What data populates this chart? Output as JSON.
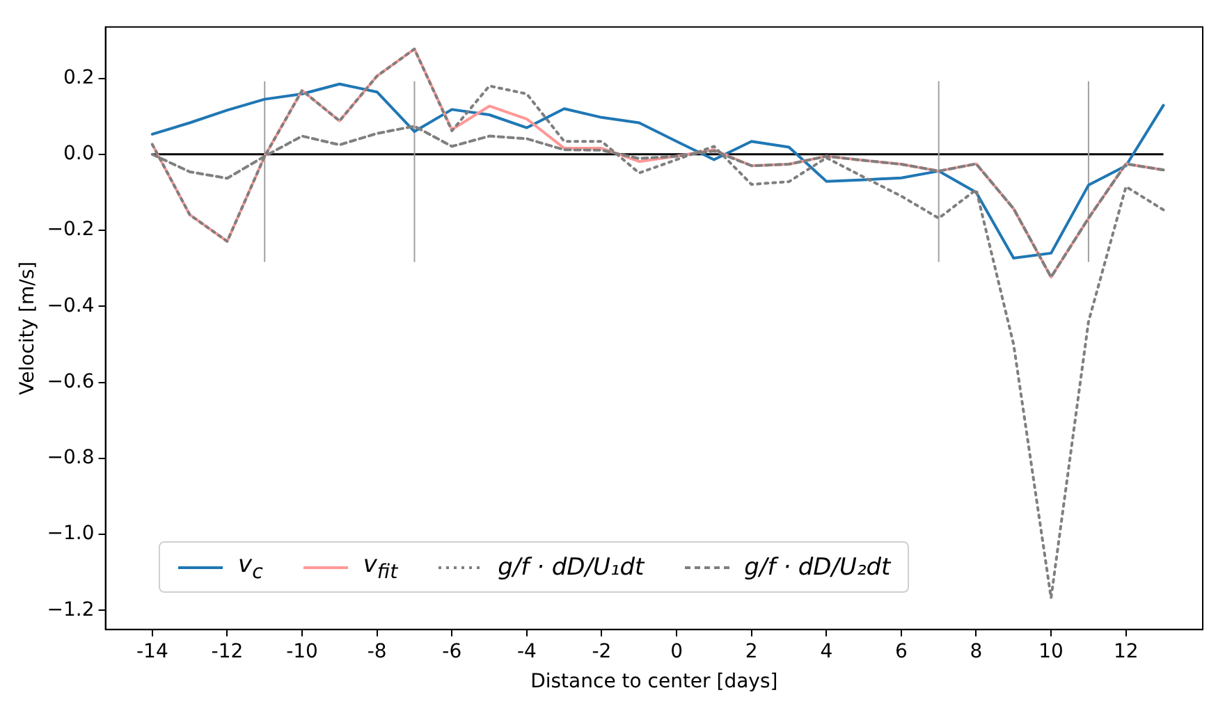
{
  "chart_data": {
    "type": "line",
    "xlabel": "Distance to center [days]",
    "ylabel": "Velocity [m/s]",
    "x": [
      -14,
      -13,
      -12,
      -11,
      -10,
      -9,
      -8,
      -7,
      -6,
      -5,
      -4,
      -3,
      -2,
      -1,
      0,
      1,
      2,
      3,
      4,
      5,
      6,
      7,
      8,
      9,
      10,
      11,
      12,
      13
    ],
    "series": [
      {
        "name": "v$_{c}$",
        "color": "#1f77b4",
        "line_style": "solid",
        "values": [
          0.053,
          0.083,
          0.116,
          0.145,
          0.159,
          0.185,
          0.164,
          0.06,
          0.118,
          0.104,
          0.07,
          0.12,
          0.097,
          0.083,
          0.034,
          -0.014,
          0.034,
          0.019,
          -0.071,
          -0.067,
          -0.062,
          -0.044,
          -0.1,
          -0.273,
          -0.26,
          -0.081,
          -0.03,
          0.129
        ]
      },
      {
        "name": "v$_{fit}$",
        "color": "#ff9896",
        "line_style": "solid",
        "values": [
          0.026,
          -0.159,
          -0.229,
          -0.005,
          0.168,
          0.088,
          0.206,
          0.277,
          0.065,
          0.127,
          0.093,
          0.016,
          0.016,
          -0.019,
          -0.005,
          0.012,
          -0.03,
          -0.026,
          -0.005,
          -0.016,
          -0.026,
          -0.044,
          -0.025,
          -0.143,
          -0.323,
          -0.168,
          -0.025,
          -0.041
        ]
      },
      {
        "name": "g/f · dD/U₁dt",
        "color": "#7f7f7f",
        "line_style": "dotted",
        "values": [
          0.026,
          -0.159,
          -0.229,
          -0.005,
          0.168,
          0.088,
          0.206,
          0.277,
          0.062,
          0.18,
          0.159,
          0.034,
          0.034,
          -0.049,
          -0.014,
          0.021,
          -0.079,
          -0.072,
          -0.009,
          -0.06,
          -0.11,
          -0.168,
          -0.093,
          -0.5,
          -1.167,
          -0.44,
          -0.085,
          -0.146
        ]
      },
      {
        "name": "g/f · dD/U₂dt",
        "color": "#7f7f7f",
        "line_style": "dashed",
        "values": [
          0.0,
          -0.046,
          -0.063,
          -0.005,
          0.048,
          0.025,
          0.055,
          0.074,
          0.021,
          0.048,
          0.041,
          0.012,
          0.011,
          -0.011,
          -0.005,
          0.009,
          -0.03,
          -0.026,
          -0.005,
          -0.016,
          -0.026,
          -0.044,
          -0.025,
          -0.143,
          -0.323,
          -0.168,
          -0.025,
          -0.041
        ]
      }
    ],
    "xlim": [
      -15.25,
      14.05
    ],
    "ylim": [
      -1.25,
      0.335
    ],
    "xticks": [
      -14,
      -12,
      -10,
      -8,
      -6,
      -4,
      -2,
      0,
      2,
      4,
      6,
      8,
      10,
      12
    ],
    "yticks": [
      {
        "value": -1.2,
        "label": "−1.2"
      },
      {
        "value": -1.0,
        "label": "−1.0"
      },
      {
        "value": -0.8,
        "label": "−0.8"
      },
      {
        "value": -0.6,
        "label": "−0.6"
      },
      {
        "value": -0.4,
        "label": "−0.4"
      },
      {
        "value": -0.2,
        "label": "−0.2"
      },
      {
        "value": 0,
        "label": "0.0"
      },
      {
        "value": 0.2,
        "label": "0.2"
      }
    ],
    "ref_lines": [
      {
        "axis": "y",
        "value": 0,
        "color": "#000000"
      },
      {
        "axis": "x",
        "value": -11,
        "color": "#a0a0a0"
      },
      {
        "axis": "x",
        "value": -7,
        "color": "#a0a0a0"
      },
      {
        "axis": "x",
        "value": 7,
        "color": "#a0a0a0"
      },
      {
        "axis": "x",
        "value": 11,
        "color": "#a0a0a0"
      }
    ],
    "legend": "bottom left",
    "marker": "none",
    "grid": false
  }
}
